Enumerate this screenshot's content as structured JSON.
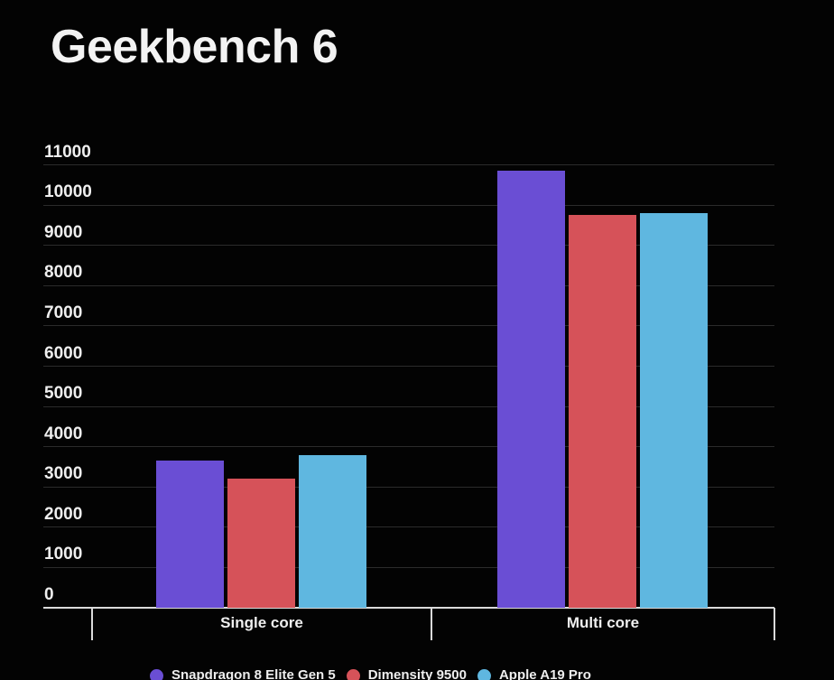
{
  "chart_data": {
    "type": "bar",
    "title": "Geekbench 6",
    "categories": [
      "Single core",
      "Multi core"
    ],
    "series": [
      {
        "name": "Snapdragon 8 Elite Gen 5",
        "color": "#6A4ED4",
        "values": [
          3650,
          10850
        ]
      },
      {
        "name": "Dimensity 9500",
        "color": "#D65259",
        "values": [
          3200,
          9750
        ]
      },
      {
        "name": "Apple A19 Pro",
        "color": "#5FB7E0",
        "values": [
          3800,
          9800
        ]
      }
    ],
    "xlabel": "",
    "ylabel": "",
    "ylim": [
      0,
      11000
    ],
    "y_ticks": [
      0,
      1000,
      2000,
      3000,
      4000,
      5000,
      6000,
      7000,
      8000,
      9000,
      10000,
      11000
    ],
    "grid": true,
    "legend_position": "bottom",
    "colors": {
      "background": "#030303",
      "gridline": "#2B2B2B",
      "axis_line": "#DADADA",
      "text": "#EFEFEF"
    }
  }
}
